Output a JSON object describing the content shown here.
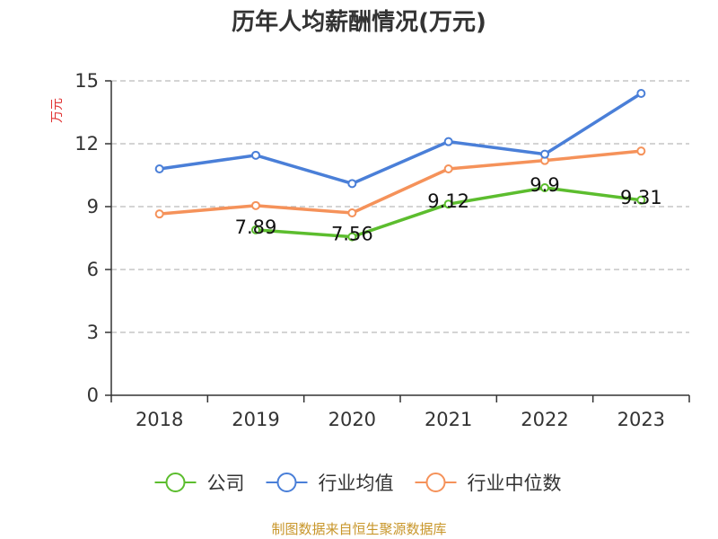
{
  "chart_data": {
    "type": "line",
    "title": "历年人均薪酬情况(万元)",
    "ylabel": "万元",
    "xlabel": "",
    "categories": [
      "2018",
      "2019",
      "2020",
      "2021",
      "2022",
      "2023"
    ],
    "ylim": [
      0,
      15
    ],
    "yticks": [
      0,
      3,
      6,
      9,
      12,
      15
    ],
    "grid": true,
    "legend_position": "bottom",
    "series": [
      {
        "name": "公司",
        "color": "#5cbd2e",
        "values": [
          null,
          7.89,
          7.56,
          9.12,
          9.9,
          9.31
        ],
        "labels": [
          "",
          "7.89",
          "7.56",
          "9.12",
          "9.9",
          "9.31"
        ]
      },
      {
        "name": "行业均值",
        "color": "#4a7fd8",
        "values": [
          10.8,
          11.45,
          10.1,
          12.1,
          11.5,
          14.4
        ],
        "labels": []
      },
      {
        "name": "行业中位数",
        "color": "#f5925a",
        "values": [
          8.65,
          9.05,
          8.7,
          10.8,
          11.2,
          11.65
        ],
        "labels": []
      }
    ]
  },
  "colors": {
    "ylabel": "#e03030",
    "source": "#c8962a",
    "grid": "#bbbbbb",
    "axis": "#333333"
  },
  "source": "制图数据来自恒生聚源数据库"
}
